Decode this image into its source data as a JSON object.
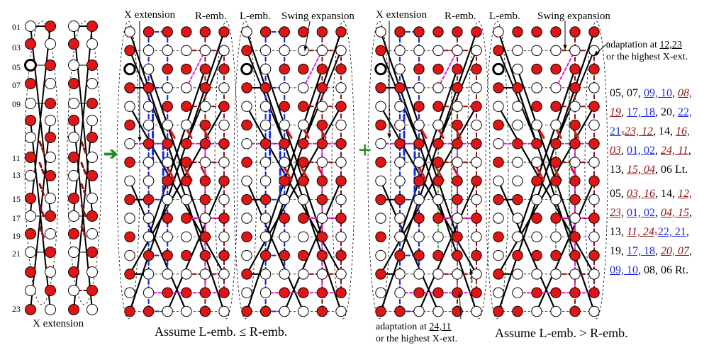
{
  "row_labels": [
    "01",
    "03",
    "05",
    "07",
    "09",
    "11",
    "13",
    "15",
    "17",
    "19",
    "21",
    "23"
  ],
  "labels": {
    "x_ext_bottom": "X extension",
    "x_ext_1": "X extension",
    "r_emb_1": "R-emb.",
    "l_emb_1": "L-emb.",
    "swing_1": "Swing expansion",
    "x_ext_2": "X extension",
    "r_emb_2": "R-emb.",
    "l_emb_2": "L-emb.",
    "swing_2": "Swing expansion",
    "adapt_top_1": "adaptation at ",
    "adapt_top_u": "12,23",
    "adapt_top_2": "or the highest X-ext.",
    "adapt_bot_1": "adaptation at ",
    "adapt_bot_u": "24,11",
    "adapt_bot_2": "or the highest X-ext.",
    "assume_1": "Assume L-emb. ≤ R-emb.",
    "assume_2": "Assume L-emb. > R-emb."
  },
  "symbols": {
    "arrow": "➔",
    "plus": "+"
  },
  "colors": {
    "red_node": "#e01515",
    "blue_path": "#1a2bd6",
    "magenta_path": "#e020d0",
    "dark_red_path": "#8b1010",
    "green_path": "#1f8a1f"
  },
  "sequence_lt": [
    [
      {
        "t": "05, 07, ",
        "s": "p"
      },
      {
        "t": "09, 10",
        "s": "b"
      },
      {
        "t": ", ",
        "s": "p"
      },
      {
        "t": "08,",
        "s": "r"
      }
    ],
    [
      {
        "t": "19",
        "s": "r"
      },
      {
        "t": ", ",
        "s": "p"
      },
      {
        "t": "17, 18",
        "s": "b"
      },
      {
        "t": ", 20, ",
        "s": "p"
      },
      {
        "t": "22,",
        "s": "b"
      }
    ],
    [
      {
        "t": "21",
        "s": "b"
      },
      {
        "t": "x",
        "s": "x"
      },
      {
        "t": "23, 12",
        "s": "r"
      },
      {
        "t": ", 14, ",
        "s": "p"
      },
      {
        "t": "16,",
        "s": "r"
      }
    ],
    [
      {
        "t": "03",
        "s": "r"
      },
      {
        "t": ", ",
        "s": "p"
      },
      {
        "t": "01, 02",
        "s": "b"
      },
      {
        "t": ", ",
        "s": "p"
      },
      {
        "t": "24, 11",
        "s": "r"
      },
      {
        "t": ",",
        "s": "p"
      }
    ],
    [
      {
        "t": "13, ",
        "s": "p"
      },
      {
        "t": "15, 04",
        "s": "r"
      },
      {
        "t": ", 06 Lt.",
        "s": "p"
      }
    ]
  ],
  "sequence_rt": [
    [
      {
        "t": "05, ",
        "s": "p"
      },
      {
        "t": "03, 16",
        "s": "r"
      },
      {
        "t": ", 14, ",
        "s": "p"
      },
      {
        "t": "12,",
        "s": "r"
      }
    ],
    [
      {
        "t": "23",
        "s": "r"
      },
      {
        "t": ", ",
        "s": "p"
      },
      {
        "t": "01, 02",
        "s": "b"
      },
      {
        "t": ", ",
        "s": "p"
      },
      {
        "t": "04, 15",
        "s": "r"
      },
      {
        "t": ",",
        "s": "p"
      }
    ],
    [
      {
        "t": "13, ",
        "s": "p"
      },
      {
        "t": "11, 24",
        "s": "r"
      },
      {
        "t": "x",
        "s": "x"
      },
      {
        "t": "22, 21",
        "s": "b"
      },
      {
        "t": ",",
        "s": "p"
      }
    ],
    [
      {
        "t": "19, ",
        "s": "p"
      },
      {
        "t": "17, 18",
        "s": "b"
      },
      {
        "t": ", ",
        "s": "p"
      },
      {
        "t": "20, 07",
        "s": "r"
      },
      {
        "t": ",",
        "s": "p"
      }
    ],
    [
      {
        "t": "09, 10",
        "s": "b"
      },
      {
        "t": ", 08, 06 Rt.",
        "s": "p"
      }
    ]
  ]
}
